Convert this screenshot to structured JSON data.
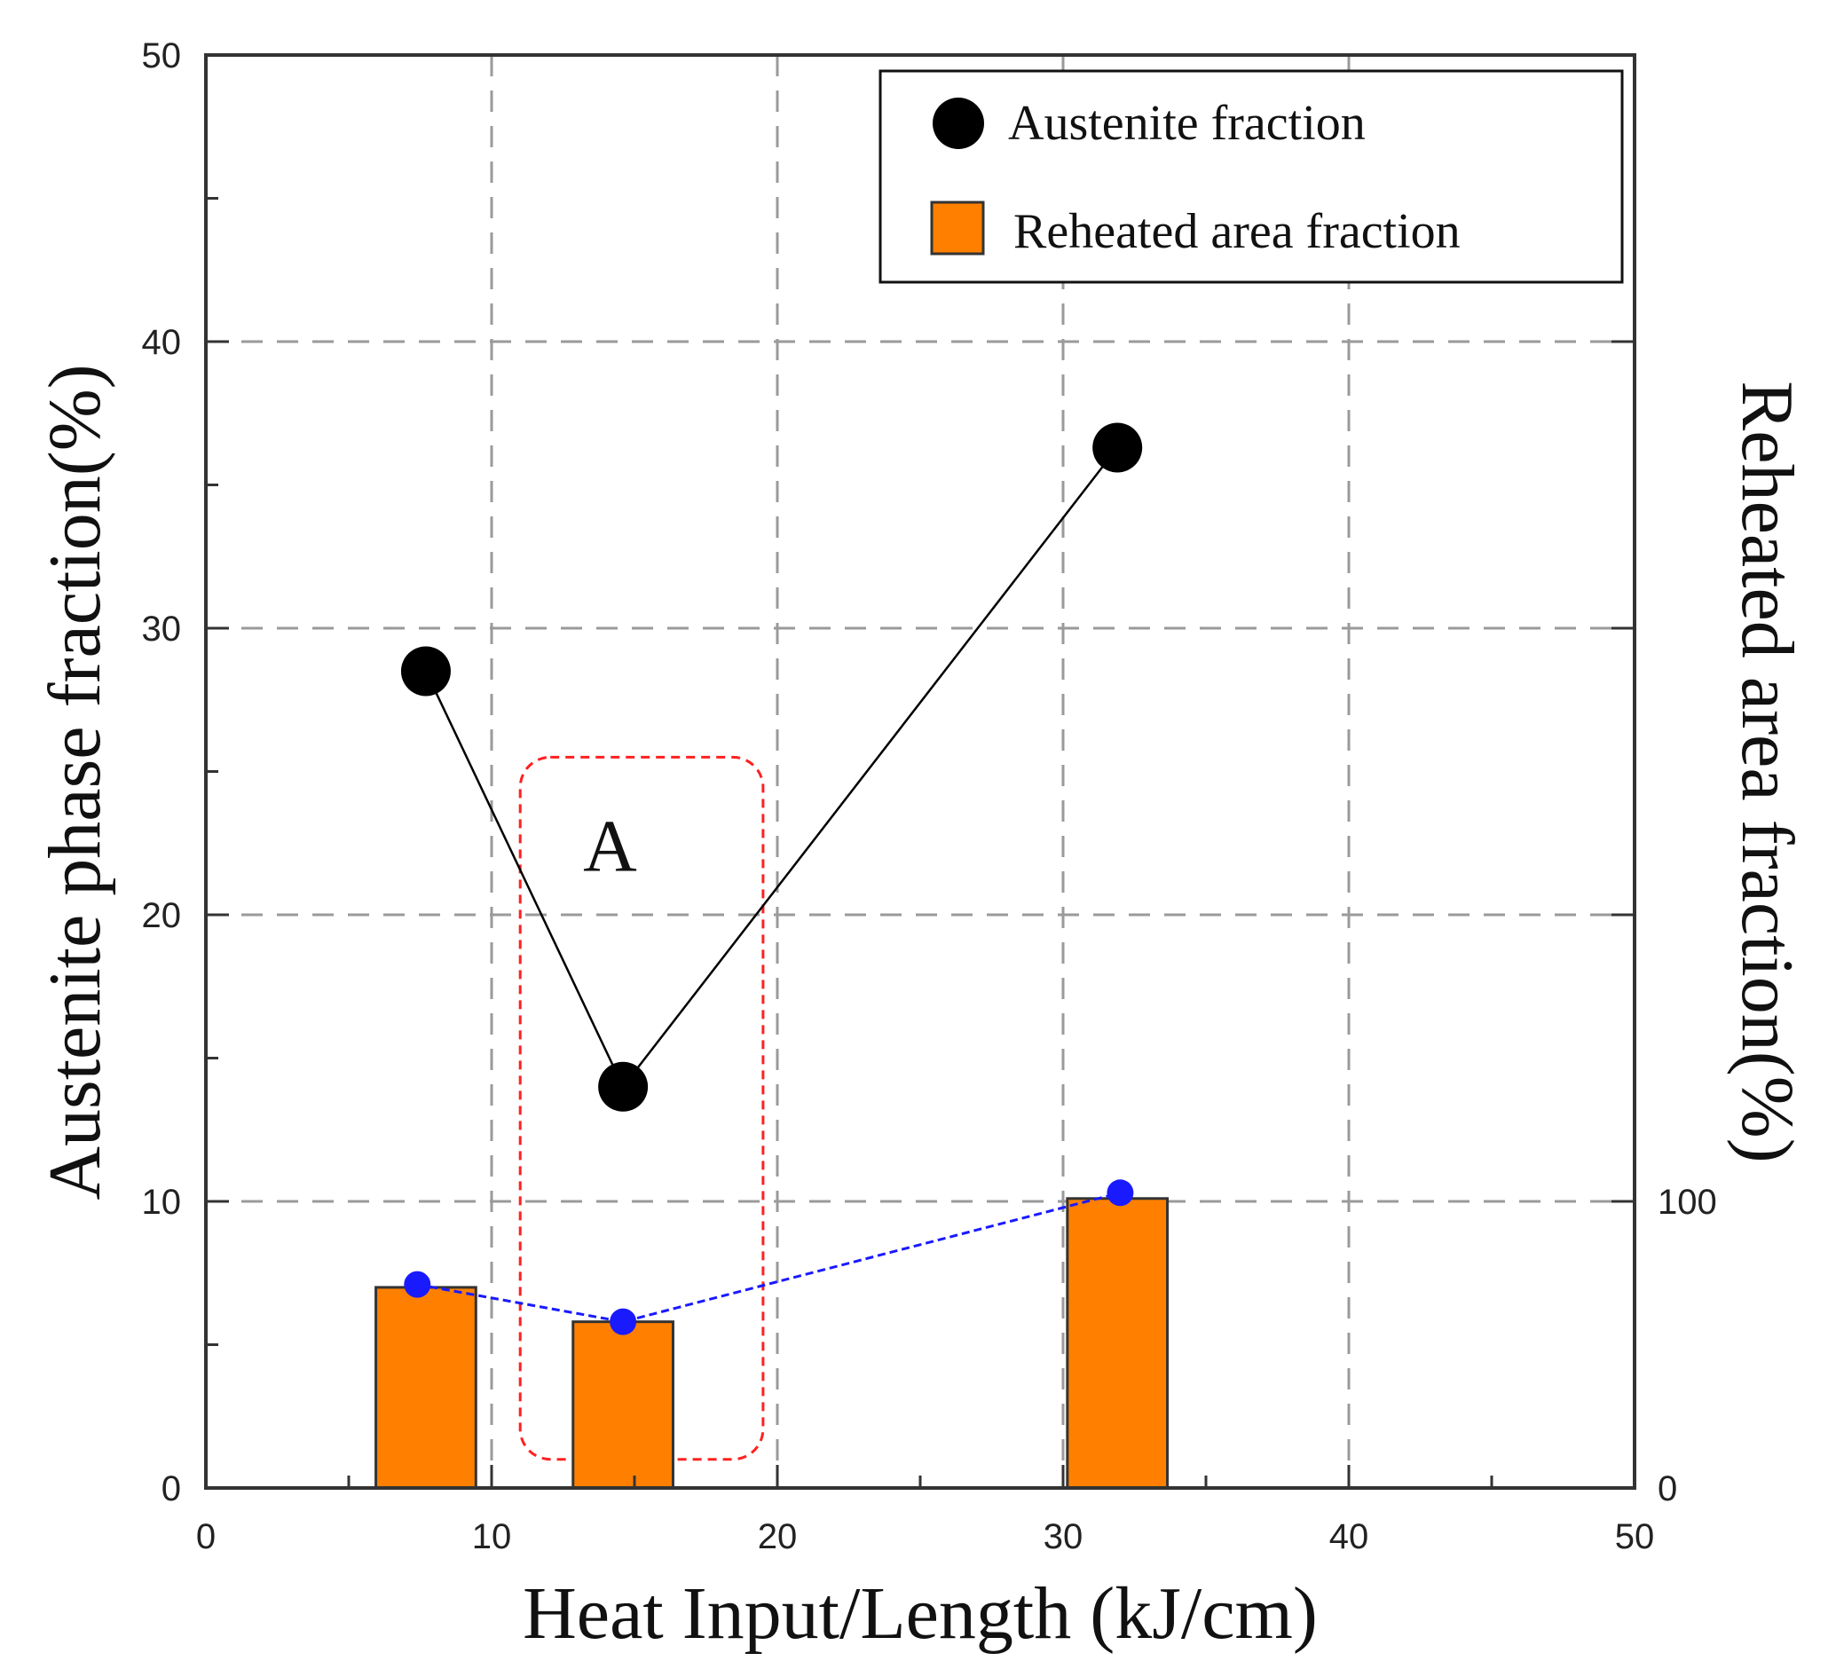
{
  "chart_data": {
    "type": "bar",
    "title": "",
    "xlabel": "Heat Input/Length (kJ/cm)",
    "ylabel": "Austenite phase fraction(%)",
    "ylabel_right": "Reheated area fraction(%)",
    "xlim": [
      0,
      50
    ],
    "ylim": [
      0,
      50
    ],
    "ylim_right": [
      0,
      500
    ],
    "x_ticks": [
      "0",
      "10",
      "20",
      "30",
      "40",
      "50"
    ],
    "y_ticks": [
      "0",
      "10",
      "20",
      "30",
      "40",
      "50"
    ],
    "y_right_ticks": [
      "0",
      "100"
    ],
    "grid": true,
    "legend_position": "top-right",
    "series": [
      {
        "name": "Austenite fraction",
        "kind": "line-markers",
        "color": "#000000",
        "x": [
          7.7,
          14.6,
          31.9
        ],
        "y": [
          28.5,
          14.0,
          36.3
        ]
      },
      {
        "name": "Reheated area fraction",
        "kind": "bar",
        "axis": "right",
        "color": "#ff8000",
        "x": [
          7.7,
          14.6,
          31.9
        ],
        "y": [
          70,
          58,
          101
        ]
      },
      {
        "name": "",
        "kind": "dashed-line",
        "axis": "right",
        "color": "#1a1aff",
        "x": [
          7.4,
          14.6,
          32.0
        ],
        "y": [
          71,
          58,
          103
        ]
      }
    ],
    "annotations": [
      {
        "label": "A",
        "style": "dashed-red-box",
        "color": "#ff2020",
        "x_range": [
          11.0,
          19.5
        ],
        "y_range": [
          1.0,
          25.5
        ]
      }
    ]
  }
}
